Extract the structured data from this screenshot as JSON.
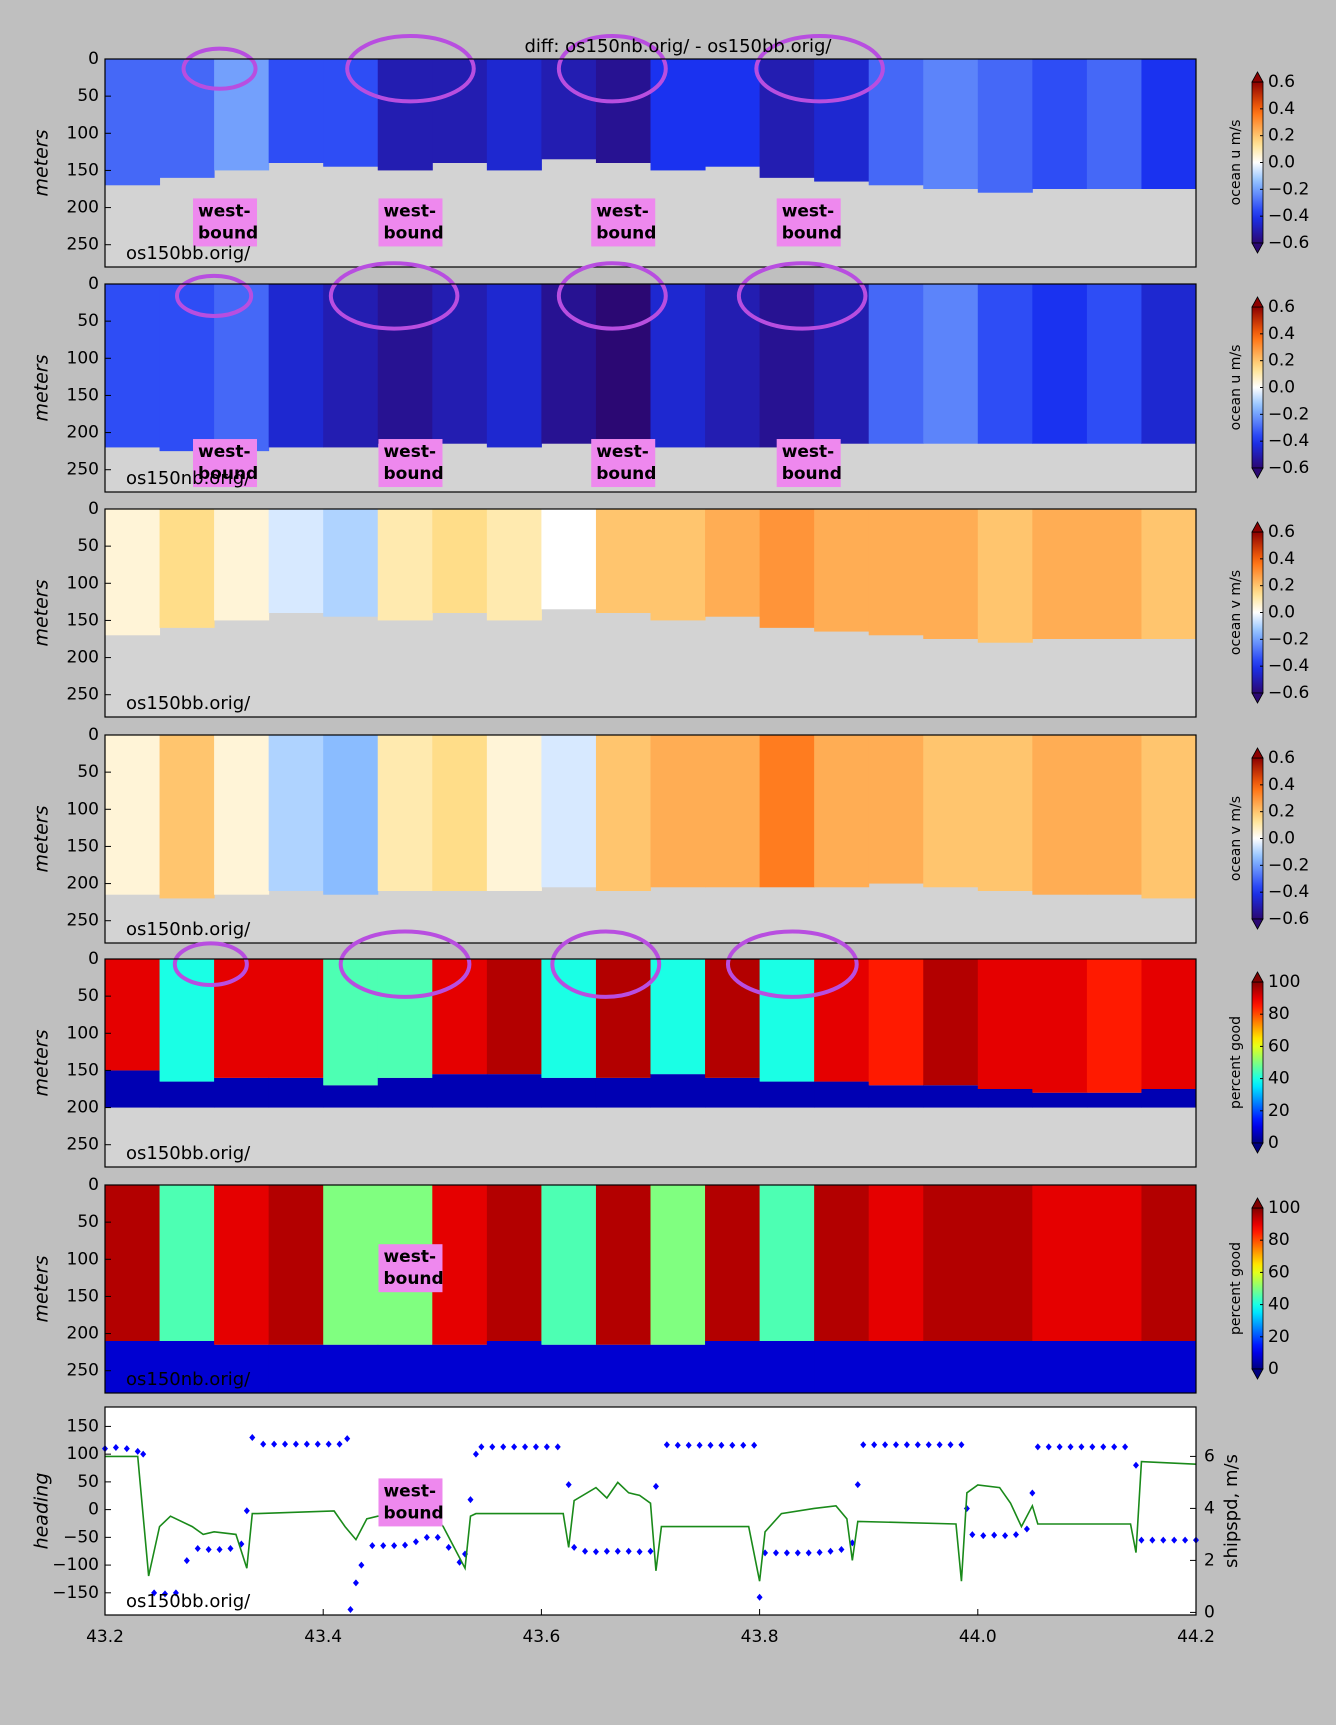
{
  "chart_data": [
    {
      "type": "heatmap",
      "title": "diff: os150nb.orig/ - os150bb.orig/",
      "ylabel": "meters",
      "label": "os150bb.orig/",
      "xlim": [
        43.2,
        44.2
      ],
      "ylim": [
        0,
        280
      ],
      "invert_y": true,
      "yticks": [
        0,
        50,
        100,
        150,
        200,
        250
      ],
      "x": [
        43.225,
        43.275,
        43.325,
        43.375,
        43.425,
        43.475,
        43.525,
        43.575,
        43.625,
        43.675,
        43.725,
        43.775,
        43.825,
        43.875,
        43.925,
        43.975,
        44.025,
        44.075,
        44.125,
        44.175
      ],
      "values": [
        -0.3,
        -0.3,
        -0.2,
        -0.35,
        -0.35,
        -0.5,
        -0.5,
        -0.45,
        -0.5,
        -0.55,
        -0.4,
        -0.4,
        -0.5,
        -0.45,
        -0.3,
        -0.25,
        -0.3,
        -0.35,
        -0.3,
        -0.4
      ],
      "depth": [
        170,
        160,
        150,
        140,
        145,
        150,
        140,
        150,
        135,
        140,
        150,
        145,
        160,
        165,
        170,
        175,
        180,
        175,
        175,
        175
      ],
      "cmap": "diverging",
      "clim": [
        -0.6,
        0.6
      ],
      "cticks": [
        0.6,
        0.4,
        0.2,
        {
          "value": 0,
          "label": "0.0"
        },
        {
          "value": -0.2,
          "label": "−0.2"
        },
        {
          "value": -0.4,
          "label": "−0.4"
        },
        {
          "value": -0.6,
          "label": "−0.6"
        }
      ],
      "clabel": "ocean u m/s",
      "annotations": [
        {
          "lines": [
            "west-",
            "bound"
          ],
          "x": 43.31,
          "y": 220
        },
        {
          "lines": [
            "west-",
            "bound"
          ],
          "x": 43.48,
          "y": 220
        },
        {
          "lines": [
            "west-",
            "bound"
          ],
          "x": 43.675,
          "y": 220
        },
        {
          "lines": [
            "west-",
            "bound"
          ],
          "x": 43.845,
          "y": 220
        }
      ],
      "highlights": [
        {
          "x": 43.305,
          "y": 13,
          "rx": 0.033,
          "ry": 27
        },
        {
          "x": 43.48,
          "y": 13,
          "rx": 0.058,
          "ry": 44
        },
        {
          "x": 43.665,
          "y": 13,
          "rx": 0.049,
          "ry": 44
        },
        {
          "x": 43.855,
          "y": 13,
          "rx": 0.058,
          "ry": 44
        }
      ]
    },
    {
      "type": "heatmap",
      "ylabel": "meters",
      "label": "os150nb.orig/",
      "xlim": [
        43.2,
        44.2
      ],
      "ylim": [
        0,
        280
      ],
      "invert_y": true,
      "yticks": [
        0,
        50,
        100,
        150,
        200,
        250
      ],
      "x": [
        43.225,
        43.275,
        43.325,
        43.375,
        43.425,
        43.475,
        43.525,
        43.575,
        43.625,
        43.675,
        43.725,
        43.775,
        43.825,
        43.875,
        43.925,
        43.975,
        44.025,
        44.075,
        44.125,
        44.175
      ],
      "values": [
        -0.35,
        -0.35,
        -0.3,
        -0.45,
        -0.5,
        -0.55,
        -0.5,
        -0.45,
        -0.55,
        -0.6,
        -0.45,
        -0.5,
        -0.55,
        -0.5,
        -0.3,
        -0.25,
        -0.35,
        -0.4,
        -0.35,
        -0.45
      ],
      "depth": [
        220,
        225,
        225,
        220,
        220,
        215,
        215,
        220,
        215,
        215,
        220,
        220,
        220,
        215,
        215,
        215,
        215,
        215,
        215,
        215
      ],
      "cmap": "diverging",
      "clim": [
        -0.6,
        0.6
      ],
      "cticks": [
        0.6,
        0.4,
        0.2,
        {
          "value": 0,
          "label": "0.0"
        },
        {
          "value": -0.2,
          "label": "−0.2"
        },
        {
          "value": -0.4,
          "label": "−0.4"
        },
        {
          "value": -0.6,
          "label": "−0.6"
        }
      ],
      "clabel": "ocean u m/s",
      "annotations": [
        {
          "lines": [
            "west-",
            "bound"
          ],
          "x": 43.31,
          "y": 241
        },
        {
          "lines": [
            "west-",
            "bound"
          ],
          "x": 43.48,
          "y": 241
        },
        {
          "lines": [
            "west-",
            "bound"
          ],
          "x": 43.675,
          "y": 241
        },
        {
          "lines": [
            "west-",
            "bound"
          ],
          "x": 43.845,
          "y": 241
        }
      ],
      "highlights": [
        {
          "x": 43.3,
          "y": 16,
          "rx": 0.034,
          "ry": 27
        },
        {
          "x": 43.465,
          "y": 16,
          "rx": 0.058,
          "ry": 44
        },
        {
          "x": 43.665,
          "y": 16,
          "rx": 0.049,
          "ry": 44
        },
        {
          "x": 43.839,
          "y": 16,
          "rx": 0.058,
          "ry": 44
        }
      ]
    },
    {
      "type": "heatmap",
      "ylabel": "meters",
      "label": "os150bb.orig/",
      "xlim": [
        43.2,
        44.2
      ],
      "ylim": [
        0,
        280
      ],
      "invert_y": true,
      "yticks": [
        0,
        50,
        100,
        150,
        200,
        250
      ],
      "x": [
        43.225,
        43.275,
        43.325,
        43.375,
        43.425,
        43.475,
        43.525,
        43.575,
        43.625,
        43.675,
        43.725,
        43.775,
        43.825,
        43.875,
        43.925,
        43.975,
        44.025,
        44.075,
        44.125,
        44.175
      ],
      "values": [
        0.05,
        0.15,
        0.05,
        -0.05,
        -0.1,
        0.1,
        0.15,
        0.1,
        0,
        0.2,
        0.2,
        0.25,
        0.3,
        0.25,
        0.25,
        0.25,
        0.2,
        0.25,
        0.25,
        0.2
      ],
      "depth": [
        170,
        160,
        150,
        140,
        145,
        150,
        140,
        150,
        135,
        140,
        150,
        145,
        160,
        165,
        170,
        175,
        180,
        175,
        175,
        175
      ],
      "cmap": "diverging",
      "clim": [
        -0.6,
        0.6
      ],
      "cticks": [
        0.6,
        0.4,
        0.2,
        {
          "value": 0,
          "label": "0.0"
        },
        {
          "value": -0.2,
          "label": "−0.2"
        },
        {
          "value": -0.4,
          "label": "−0.4"
        },
        {
          "value": -0.6,
          "label": "−0.6"
        }
      ],
      "clabel": "ocean v m/s"
    },
    {
      "type": "heatmap",
      "ylabel": "meters",
      "label": "os150nb.orig/",
      "xlim": [
        43.2,
        44.2
      ],
      "ylim": [
        0,
        280
      ],
      "invert_y": true,
      "yticks": [
        0,
        50,
        100,
        150,
        200,
        250
      ],
      "x": [
        43.225,
        43.275,
        43.325,
        43.375,
        43.425,
        43.475,
        43.525,
        43.575,
        43.625,
        43.675,
        43.725,
        43.775,
        43.825,
        43.875,
        43.925,
        43.975,
        44.025,
        44.075,
        44.125,
        44.175
      ],
      "values": [
        0.05,
        0.2,
        0.05,
        -0.1,
        -0.15,
        0.1,
        0.15,
        0.05,
        -0.05,
        0.2,
        0.25,
        0.25,
        0.35,
        0.25,
        0.25,
        0.2,
        0.2,
        0.25,
        0.25,
        0.2
      ],
      "depth": [
        215,
        220,
        215,
        210,
        215,
        210,
        210,
        210,
        205,
        210,
        205,
        205,
        205,
        205,
        200,
        205,
        210,
        215,
        215,
        220
      ],
      "cmap": "diverging",
      "clim": [
        -0.6,
        0.6
      ],
      "cticks": [
        0.6,
        0.4,
        0.2,
        {
          "value": 0,
          "label": "0.0"
        },
        {
          "value": -0.2,
          "label": "−0.2"
        },
        {
          "value": -0.4,
          "label": "−0.4"
        },
        {
          "value": -0.6,
          "label": "−0.6"
        }
      ],
      "clabel": "ocean v m/s"
    },
    {
      "type": "heatmap",
      "ylabel": "meters",
      "label": "os150bb.orig/",
      "xlim": [
        43.2,
        44.2
      ],
      "ylim": [
        0,
        280
      ],
      "invert_y": true,
      "yticks": [
        0,
        50,
        100,
        150,
        200,
        250
      ],
      "x": [
        43.225,
        43.275,
        43.325,
        43.375,
        43.425,
        43.475,
        43.525,
        43.575,
        43.625,
        43.675,
        43.725,
        43.775,
        43.825,
        43.875,
        43.925,
        43.975,
        44.025,
        44.075,
        44.125,
        44.175
      ],
      "values": [
        90,
        40,
        90,
        90,
        45,
        45,
        90,
        95,
        40,
        95,
        40,
        95,
        40,
        90,
        85,
        95,
        90,
        90,
        85,
        90
      ],
      "depth": [
        150,
        165,
        160,
        160,
        170,
        160,
        155,
        155,
        160,
        160,
        155,
        160,
        165,
        165,
        170,
        170,
        175,
        180,
        180,
        175
      ],
      "floor": 200,
      "floor_value": 5,
      "cmap": "jet",
      "clim": [
        0,
        100
      ],
      "cticks": [
        100,
        80,
        60,
        40,
        20,
        0
      ],
      "clabel": "percent good",
      "highlights": [
        {
          "x": 43.297,
          "y": 7,
          "rx": 0.033,
          "ry": 28
        },
        {
          "x": 43.475,
          "y": 7,
          "rx": 0.059,
          "ry": 44
        },
        {
          "x": 43.659,
          "y": 7,
          "rx": 0.049,
          "ry": 44
        },
        {
          "x": 43.83,
          "y": 7,
          "rx": 0.059,
          "ry": 44
        }
      ]
    },
    {
      "type": "heatmap",
      "ylabel": "meters",
      "label": "os150nb.orig/",
      "xlim": [
        43.2,
        44.2
      ],
      "ylim": [
        0,
        280
      ],
      "invert_y": true,
      "yticks": [
        0,
        50,
        100,
        150,
        200,
        250
      ],
      "x": [
        43.225,
        43.275,
        43.325,
        43.375,
        43.425,
        43.475,
        43.525,
        43.575,
        43.625,
        43.675,
        43.725,
        43.775,
        43.825,
        43.875,
        43.925,
        43.975,
        44.025,
        44.075,
        44.125,
        44.175
      ],
      "values": [
        95,
        45,
        90,
        95,
        50,
        50,
        90,
        95,
        45,
        95,
        50,
        95,
        45,
        95,
        90,
        95,
        95,
        90,
        90,
        95
      ],
      "depth": [
        210,
        210,
        215,
        215,
        215,
        215,
        215,
        210,
        215,
        215,
        215,
        210,
        210,
        210,
        210,
        210,
        210,
        210,
        210,
        210
      ],
      "floor": 280,
      "floor_value": 8,
      "cmap": "jet",
      "clim": [
        0,
        100
      ],
      "cticks": [
        100,
        80,
        60,
        40,
        20,
        0
      ],
      "clabel": "percent good",
      "annotations": [
        {
          "lines": [
            "west-",
            "bound"
          ],
          "x": 43.48,
          "y": 112
        }
      ]
    },
    {
      "type": "combo",
      "label": "os150bb.orig/",
      "xlim": [
        43.2,
        44.2
      ],
      "xticks": [
        43.2,
        43.4,
        43.6,
        43.8,
        {
          "value": 44,
          "label": "44.0"
        },
        44.2
      ],
      "ylim": [
        -190,
        185
      ],
      "yticks": [
        150,
        100,
        50,
        0,
        {
          "value": -50,
          "label": "−50"
        },
        {
          "value": -100,
          "label": "−100"
        },
        {
          "value": -150,
          "label": "−150"
        }
      ],
      "ylabel": "heading",
      "y2lim": [
        -0.1,
        7.9
      ],
      "y2ticks": [
        0,
        2,
        4,
        6
      ],
      "y2label": "shipspd, m/s",
      "series": [
        {
          "type": "scatter",
          "color": "#0000ff",
          "x": [
            43.2,
            43.21,
            43.22,
            43.23,
            43.235,
            43.245,
            43.255,
            43.265,
            43.275,
            43.285,
            43.295,
            43.305,
            43.315,
            43.325,
            43.33,
            43.335,
            43.345,
            43.355,
            43.365,
            43.375,
            43.385,
            43.395,
            43.405,
            43.415,
            43.422,
            43.425,
            43.43,
            43.435,
            43.445,
            43.455,
            43.465,
            43.475,
            43.485,
            43.495,
            43.505,
            43.515,
            43.525,
            43.53,
            43.535,
            43.54,
            43.545,
            43.555,
            43.565,
            43.575,
            43.585,
            43.595,
            43.605,
            43.615,
            43.625,
            43.63,
            43.64,
            43.65,
            43.66,
            43.67,
            43.68,
            43.69,
            43.7,
            43.705,
            43.715,
            43.725,
            43.735,
            43.745,
            43.755,
            43.765,
            43.775,
            43.785,
            43.795,
            43.8,
            43.805,
            43.815,
            43.825,
            43.835,
            43.845,
            43.855,
            43.865,
            43.875,
            43.885,
            43.89,
            43.895,
            43.905,
            43.915,
            43.925,
            43.935,
            43.945,
            43.955,
            43.965,
            43.975,
            43.985,
            43.99,
            43.995,
            44.005,
            44.015,
            44.025,
            44.035,
            44.045,
            44.05,
            44.055,
            44.065,
            44.075,
            44.085,
            44.095,
            44.105,
            44.115,
            44.125,
            44.135,
            44.145,
            44.15,
            44.16,
            44.17,
            44.18,
            44.19,
            44.2
          ],
          "values": [
            110,
            112,
            110,
            105,
            100,
            -150,
            -152,
            -150,
            -92,
            -70,
            -72,
            -72,
            -70,
            -62,
            -2,
            130,
            118,
            118,
            118,
            118,
            118,
            118,
            118,
            118,
            128,
            -180,
            -132,
            -100,
            -65,
            -65,
            -65,
            -64,
            -58,
            -50,
            -50,
            -68,
            -95,
            -80,
            18,
            100,
            113,
            113,
            113,
            113,
            113,
            113,
            113,
            113,
            45,
            -68,
            -75,
            -76,
            -75,
            -75,
            -75,
            -76,
            -75,
            42,
            117,
            116,
            116,
            116,
            116,
            116,
            116,
            116,
            116,
            -158,
            -78,
            -78,
            -78,
            -78,
            -78,
            -77,
            -75,
            -72,
            -60,
            45,
            117,
            117,
            117,
            117,
            117,
            117,
            117,
            117,
            117,
            117,
            2,
            -45,
            -47,
            -46,
            -47,
            -45,
            -35,
            30,
            113,
            113,
            113,
            113,
            113,
            113,
            113,
            113,
            113,
            80,
            -55,
            -55,
            -55,
            -55,
            -55,
            -55
          ]
        },
        {
          "type": "line",
          "color": "#1a8a1a",
          "axis": "y2",
          "x": [
            43.2,
            43.23,
            43.24,
            43.25,
            43.26,
            43.28,
            43.29,
            43.3,
            43.32,
            43.33,
            43.335,
            43.34,
            43.41,
            43.42,
            43.43,
            43.44,
            43.45,
            43.5,
            43.51,
            43.52,
            43.53,
            43.535,
            43.54,
            43.62,
            43.625,
            43.63,
            43.65,
            43.66,
            43.67,
            43.68,
            43.69,
            43.7,
            43.705,
            43.71,
            43.79,
            43.8,
            43.805,
            43.82,
            43.85,
            43.87,
            43.88,
            43.885,
            43.89,
            43.98,
            43.985,
            43.99,
            44.0,
            44.02,
            44.03,
            44.04,
            44.05,
            44.055,
            44.14,
            44.145,
            44.15,
            44.2
          ],
          "values": [
            6,
            6,
            1.4,
            3.3,
            3.7,
            3.3,
            3,
            3.1,
            3,
            1.7,
            3.8,
            3.8,
            3.9,
            3.3,
            2.8,
            3.6,
            3.7,
            3.8,
            3.3,
            2.5,
            1.7,
            3.7,
            3.8,
            3.8,
            2.5,
            4.3,
            4.8,
            4.4,
            5,
            4.6,
            4.5,
            4.2,
            1.6,
            3.3,
            3.3,
            1.2,
            3.1,
            3.8,
            4,
            4.1,
            3.6,
            2,
            3.5,
            3.4,
            1.2,
            4.6,
            4.9,
            4.8,
            4.2,
            3.3,
            4.1,
            3.4,
            3.4,
            2.3,
            5.8,
            5.7
          ]
        }
      ],
      "annotations": [
        {
          "lines": [
            "west-",
            "bound"
          ],
          "x": 43.48,
          "y": 13
        }
      ]
    }
  ]
}
